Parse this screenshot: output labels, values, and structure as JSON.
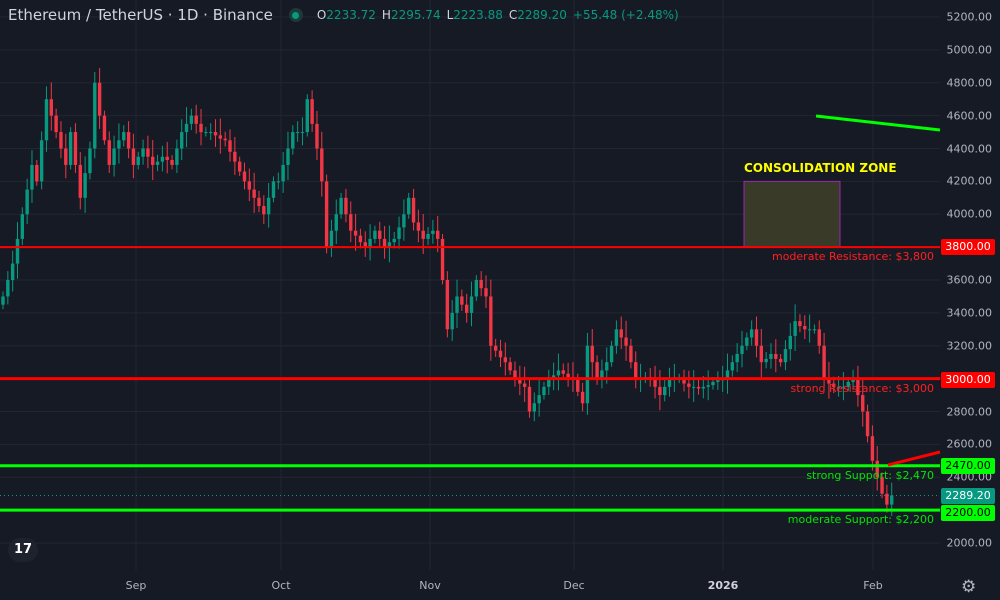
{
  "header": {
    "symbol": "Ethereum / TetherUS · 1D · Binance",
    "o_label": "O",
    "o": "2233.72",
    "h_label": "H",
    "h": "2295.74",
    "l_label": "L",
    "l": "2223.88",
    "c_label": "C",
    "c": "2289.20",
    "change": "+55.48 (+2.48%)"
  },
  "colors": {
    "up": "#089981",
    "down": "#f23645",
    "background": "#161a25",
    "resistance": "#ff0000",
    "support": "#00ff00",
    "zone_text": "#ffff00",
    "zone_border": "#9c27b0"
  },
  "chart_data": {
    "type": "candlestick",
    "ylim": [
      1900,
      5250
    ],
    "y_ticks": [
      "5200.00",
      "5000.00",
      "4800.00",
      "4600.00",
      "4400.00",
      "4200.00",
      "4000.00",
      "3600.00",
      "3400.00",
      "3200.00",
      "2800.00",
      "2600.00",
      "2400.00",
      "2000.00"
    ],
    "x_ticks": [
      "Sep",
      "Oct",
      "Nov",
      "Dec",
      "2026",
      "Feb"
    ],
    "closes": [
      3500,
      3600,
      3700,
      3850,
      4000,
      4150,
      4300,
      4200,
      4450,
      4700,
      4600,
      4500,
      4400,
      4300,
      4500,
      4300,
      4100,
      4250,
      4400,
      4800,
      4600,
      4450,
      4300,
      4400,
      4450,
      4500,
      4400,
      4300,
      4350,
      4400,
      4350,
      4300,
      4320,
      4350,
      4330,
      4300,
      4400,
      4500,
      4550,
      4600,
      4550,
      4500,
      4500,
      4500,
      4480,
      4460,
      4450,
      4380,
      4320,
      4260,
      4200,
      4150,
      4100,
      4050,
      4000,
      4100,
      4200,
      4200,
      4300,
      4400,
      4500,
      4500,
      4500,
      4700,
      4550,
      4400,
      4200,
      3800,
      3900,
      4000,
      4100,
      4000,
      3900,
      3870,
      3830,
      3800,
      3850,
      3900,
      3850,
      3800,
      3830,
      3850,
      3920,
      4000,
      4100,
      3950,
      3900,
      3850,
      3880,
      3900,
      3850,
      3600,
      3300,
      3400,
      3500,
      3450,
      3400,
      3500,
      3600,
      3550,
      3500,
      3200,
      3170,
      3130,
      3100,
      3050,
      3000,
      2970,
      2950,
      2800,
      2850,
      2900,
      2950,
      3000,
      3020,
      3050,
      3030,
      3010,
      3000,
      2920,
      2850,
      3200,
      3100,
      3000,
      3050,
      3100,
      3200,
      3300,
      3250,
      3200,
      3100,
      3000,
      3000,
      3010,
      3000,
      2950,
      2900,
      2950,
      3000,
      3000,
      3000,
      2970,
      2950,
      2950,
      2940,
      2950,
      2960,
      2980,
      2990,
      3000,
      3050,
      3100,
      3150,
      3200,
      3250,
      3300,
      3200,
      3100,
      3120,
      3150,
      3120,
      3100,
      3180,
      3260,
      3350,
      3320,
      3300,
      3300,
      3300,
      3200,
      3000,
      2970,
      2950,
      2950,
      2950,
      2980,
      3000,
      2900,
      2800,
      2650,
      2500,
      2400,
      2300,
      2233.72,
      2289.2
    ],
    "current_price": "2289.20",
    "levels": [
      {
        "price": 3800,
        "tag": "3800.00",
        "label": "moderate Resistance: $3,800",
        "kind": "resistance"
      },
      {
        "price": 3000,
        "tag": "3000.00",
        "label": "strong Resistance: $3,000",
        "kind": "resistance"
      },
      {
        "price": 2470,
        "tag": "2470.00",
        "label": "strong Support: $2,470",
        "kind": "support"
      },
      {
        "price": 2200,
        "tag": "2200.00",
        "label": "moderate Support: $2,200",
        "kind": "support"
      }
    ],
    "zone": {
      "label": "CONSOLIDATION ZONE",
      "price_top": 4200,
      "price_bottom": 3800
    }
  }
}
